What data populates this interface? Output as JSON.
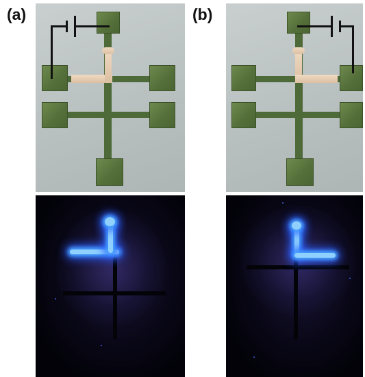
{
  "figure": {
    "panels": [
      {
        "id": "a",
        "label": "(a)"
      },
      {
        "id": "b",
        "label": "(b)"
      }
    ],
    "colors": {
      "substrate": "#c2c8c8",
      "electrode_pad": "#5f7a43",
      "metal_trace": "#e6cdb2",
      "emission_glow": "#6ab8ff",
      "dark_background": "#05040c",
      "circuit_wire": "#111111"
    }
  }
}
